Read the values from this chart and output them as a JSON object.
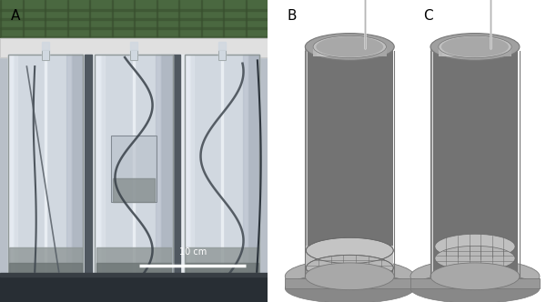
{
  "fig_width": 6.0,
  "fig_height": 3.32,
  "dpi": 100,
  "bg_color": "#ffffff",
  "label_A": "A",
  "label_B": "B",
  "label_C": "C",
  "scale_bar_text": "10 cm",
  "cyl_body": "#b8b8b8",
  "cyl_light": "#d0d0d0",
  "cyl_dark": "#909090",
  "cyl_edge": "#787878",
  "cyl_top_fill": "#a8a8a8",
  "cyl_inner_fill": "#c8c8c8",
  "base_fill": "#a0a0a0",
  "base_edge": "#787878",
  "mesh_line": "#686868",
  "wire_col": "#d8d8d8",
  "wire_edge": "#b0b0b0"
}
